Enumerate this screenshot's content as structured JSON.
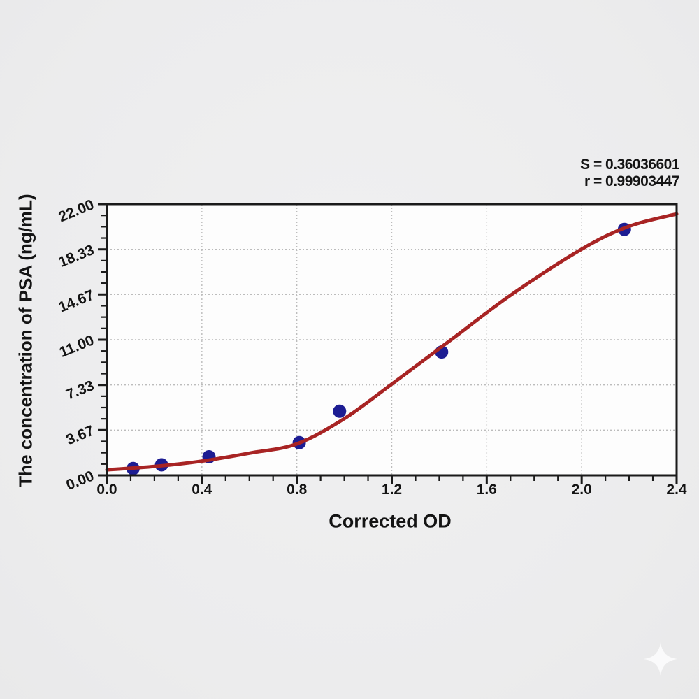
{
  "chart_data": {
    "type": "scatter",
    "title": "",
    "xlabel": "Corrected OD",
    "ylabel": "The concentration of PSA (ng/mL)",
    "xlim": [
      0,
      2.4
    ],
    "ylim": [
      0,
      22
    ],
    "grid": "dotted-major",
    "legend": false,
    "annotations": {
      "s": "S = 0.36036601",
      "r": "r = 0.99903447"
    },
    "x_ticks": {
      "values": [
        0,
        0.4,
        0.8,
        1.2,
        1.6,
        2.0,
        2.4
      ],
      "labels": [
        "0.0",
        "0.4",
        "0.8",
        "1.2",
        "1.6",
        "2.0",
        "2.4"
      ],
      "minor_per_interval": 3
    },
    "y_ticks": {
      "values": [
        0,
        3.67,
        7.33,
        11.0,
        14.67,
        18.33,
        22.0
      ],
      "labels": [
        "0.00",
        "3.67",
        "7.33",
        "11.00",
        "14.67",
        "18.33",
        "22.00"
      ],
      "minor_per_interval": 3
    },
    "series": [
      {
        "name": "standard-points",
        "type": "scatter",
        "color": "#1d1d93",
        "marker_radius": 9.5,
        "points": [
          [
            0.11,
            0.55
          ],
          [
            0.23,
            0.85
          ],
          [
            0.43,
            1.5
          ],
          [
            0.81,
            2.65
          ],
          [
            0.98,
            5.2
          ],
          [
            1.41,
            10.0
          ],
          [
            2.18,
            19.95
          ]
        ]
      },
      {
        "name": "fitted-curve",
        "type": "line",
        "color": "#a82424",
        "width": 5,
        "points": [
          [
            0,
            0.45
          ],
          [
            0.2,
            0.72
          ],
          [
            0.4,
            1.15
          ],
          [
            0.6,
            1.8
          ],
          [
            0.8,
            2.55
          ],
          [
            1.0,
            4.6
          ],
          [
            1.2,
            7.4
          ],
          [
            1.45,
            11.0
          ],
          [
            1.7,
            14.6
          ],
          [
            2.0,
            18.35
          ],
          [
            2.2,
            20.2
          ],
          [
            2.4,
            21.2
          ]
        ]
      }
    ]
  },
  "colors": {
    "curve": "#a82424",
    "points": "#1d1d93",
    "axis": "#1a1a1a",
    "grid": "#bcbcbc",
    "text": "#141414",
    "plot_bg": "#fdfdfd",
    "page_bg": "#ededee",
    "watermark": "#ffffff"
  }
}
